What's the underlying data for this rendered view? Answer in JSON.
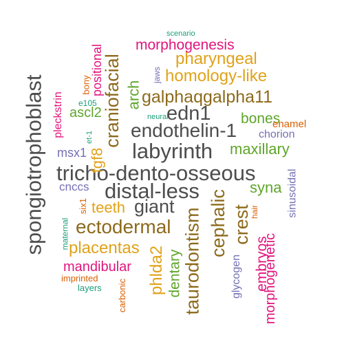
{
  "words": {
    "spongiotrophoblast": "spongiotrophoblast",
    "tricho_dento_osseous": "tricho-dento-osseous",
    "distal_less": "distal-less",
    "labyrinth": "labyrinth",
    "endothelin_1": "endothelin-1",
    "giant": "giant",
    "ectodermal": "ectodermal",
    "galphaqgalpha11": "galphaqgalpha11",
    "edn1": "edn1",
    "craniofacial": "craniofacial",
    "taurodontism": "taurodontism",
    "cephalic": "cephalic",
    "crest": "crest",
    "phlda2": "phlda2",
    "homology_like": "homology-like",
    "pharyngeal": "pharyngeal",
    "placentas": "placentas",
    "teeth": "teeth",
    "fgf8": "fgf8",
    "morphogenesis": "morphogenesis",
    "maxillary": "maxillary",
    "mandibular": "mandibular",
    "arch": "arch",
    "dentary": "dentary",
    "bones": "bones",
    "syna": "syna",
    "embryos": "embryos",
    "morphogenetic": "morphogenetic",
    "ascl2": "ascl2",
    "positional": "positional",
    "pleckstrin": "pleckstrin",
    "msx1": "msx1",
    "cnccs": "cnccs",
    "sinusoidal": "sinusoidal",
    "glycogen": "glycogen",
    "chorion": "chorion",
    "enamel": "enamel",
    "jaws": "jaws",
    "bony": "bony",
    "carbonic": "carbonic",
    "imprinted": "imprinted",
    "layers": "layers",
    "maternal": "maternal",
    "six1": "six1",
    "e105": "e105",
    "et_1": "et-1",
    "neural": "neural",
    "scenario": "scenario",
    "hair": "hair"
  },
  "colors": {
    "gray": "#4d4d4d",
    "brown": "#8c6a1c",
    "gold": "#e0a21a",
    "green": "#5fa52b",
    "pink": "#e0147d",
    "orange": "#d95f02",
    "purple": "#7570b3",
    "teal": "#1b9e77"
  }
}
